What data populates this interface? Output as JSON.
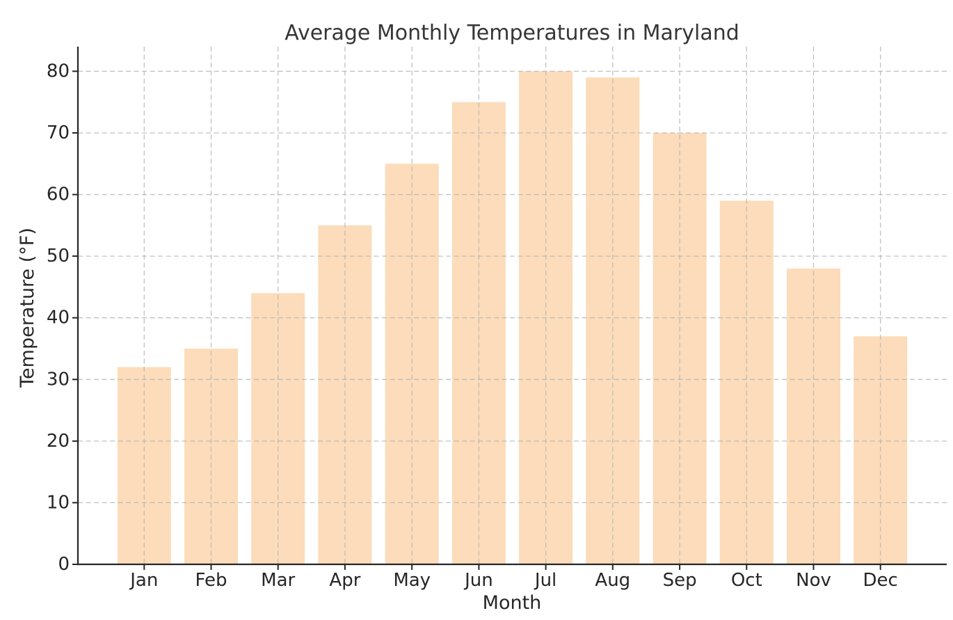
{
  "figure": {
    "background": "#ffffff"
  },
  "chart_data": {
    "type": "bar",
    "title": "Average Monthly Temperatures in Maryland",
    "xlabel": "Month",
    "ylabel": "Temperature (°F)",
    "categories": [
      "Jan",
      "Feb",
      "Mar",
      "Apr",
      "May",
      "Jun",
      "Jul",
      "Aug",
      "Sep",
      "Oct",
      "Nov",
      "Dec"
    ],
    "values": [
      32,
      35,
      44,
      55,
      65,
      75,
      80,
      79,
      70,
      59,
      48,
      37
    ],
    "ylim": [
      0,
      84
    ],
    "yticks": [
      0,
      10,
      20,
      30,
      40,
      50,
      60,
      70,
      80
    ],
    "grid": true,
    "grid_style": "dashed",
    "grid_axes": "both",
    "legend_position": "none",
    "bar_color": "#fcdcba",
    "grid_color": "#b5b5b5",
    "axis_color": "#262626",
    "tick_text_color": "#262626",
    "title_color": "#363636"
  }
}
